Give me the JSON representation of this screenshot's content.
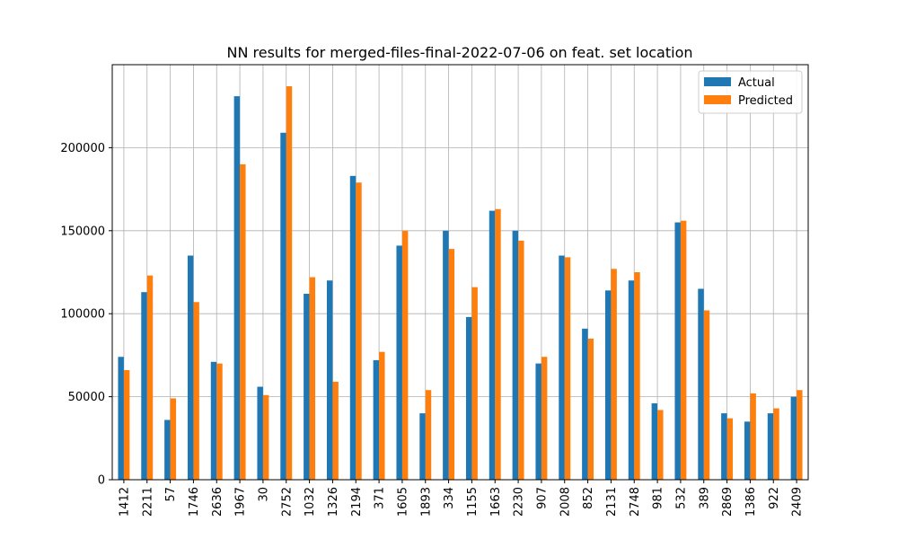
{
  "chart_data": {
    "type": "bar",
    "title": "NN results for merged-files-final-2022-07-06 on feat. set location",
    "xlabel": "",
    "ylabel": "",
    "ylim": [
      0,
      250000
    ],
    "yticks": [
      0,
      50000,
      100000,
      150000,
      200000
    ],
    "grid": true,
    "legend_position": "top-right",
    "categories": [
      "1412",
      "2211",
      "57",
      "1746",
      "2636",
      "1967",
      "30",
      "2752",
      "1032",
      "1326",
      "2194",
      "371",
      "1605",
      "1893",
      "334",
      "1155",
      "1663",
      "2230",
      "907",
      "2008",
      "852",
      "2131",
      "2748",
      "981",
      "532",
      "389",
      "2869",
      "1386",
      "922",
      "2409"
    ],
    "series": [
      {
        "name": "Actual",
        "color": "#1f77b4",
        "values": [
          74000,
          113000,
          36000,
          135000,
          71000,
          231000,
          56000,
          209000,
          112000,
          120000,
          183000,
          72000,
          141000,
          40000,
          150000,
          98000,
          162000,
          150000,
          70000,
          135000,
          91000,
          114000,
          120000,
          46000,
          155000,
          115000,
          40000,
          35000,
          40000,
          50000
        ]
      },
      {
        "name": "Predicted",
        "color": "#ff7f0e",
        "values": [
          66000,
          123000,
          49000,
          107000,
          70000,
          190000,
          51000,
          237000,
          122000,
          59000,
          179000,
          77000,
          150000,
          54000,
          139000,
          116000,
          163000,
          144000,
          74000,
          134000,
          85000,
          127000,
          125000,
          42000,
          156000,
          102000,
          37000,
          52000,
          43000,
          54000
        ]
      }
    ]
  }
}
